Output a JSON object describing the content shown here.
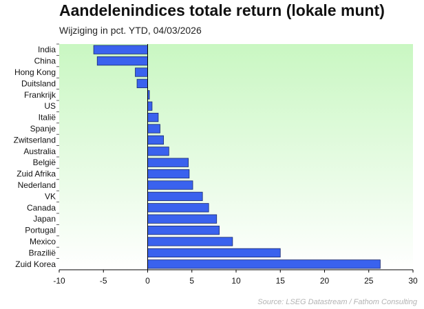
{
  "chart_data": {
    "type": "bar",
    "orientation": "horizontal",
    "title": "Aandelenindices totale return (lokale munt)",
    "subtitle": "Wijziging in pct. YTD, 04/03/2026",
    "source": "Source: LSEG Datastream / Fathom Consulting",
    "categories": [
      "India",
      "China",
      "Hong Kong",
      "Duitsland",
      "Frankrijk",
      "US",
      "Italië",
      "Spanje",
      "Zwitserland",
      "Australia",
      "België",
      "Zuid Afrika",
      "Nederland",
      "VK",
      "Canada",
      "Japan",
      "Portugal",
      "Mexico",
      "Brazilië",
      "Zuid Korea"
    ],
    "values": [
      -6.1,
      -5.7,
      -1.4,
      -1.2,
      0.2,
      0.5,
      1.2,
      1.4,
      1.8,
      2.4,
      4.6,
      4.7,
      5.1,
      6.2,
      6.9,
      7.8,
      8.1,
      9.6,
      15.0,
      26.3
    ],
    "xlim": [
      -10,
      30
    ],
    "xticks": [
      -10,
      -5,
      0,
      5,
      10,
      15,
      20,
      25,
      30
    ],
    "xlabel": "",
    "ylabel": "",
    "grid": false,
    "legend": "none",
    "colors": {
      "bar_fill": "#3a62ee",
      "bar_stroke": "#1a2a6e",
      "background_top": "#c9f7c2",
      "background_bottom": "#ffffff",
      "zero_line": "#000000"
    }
  }
}
